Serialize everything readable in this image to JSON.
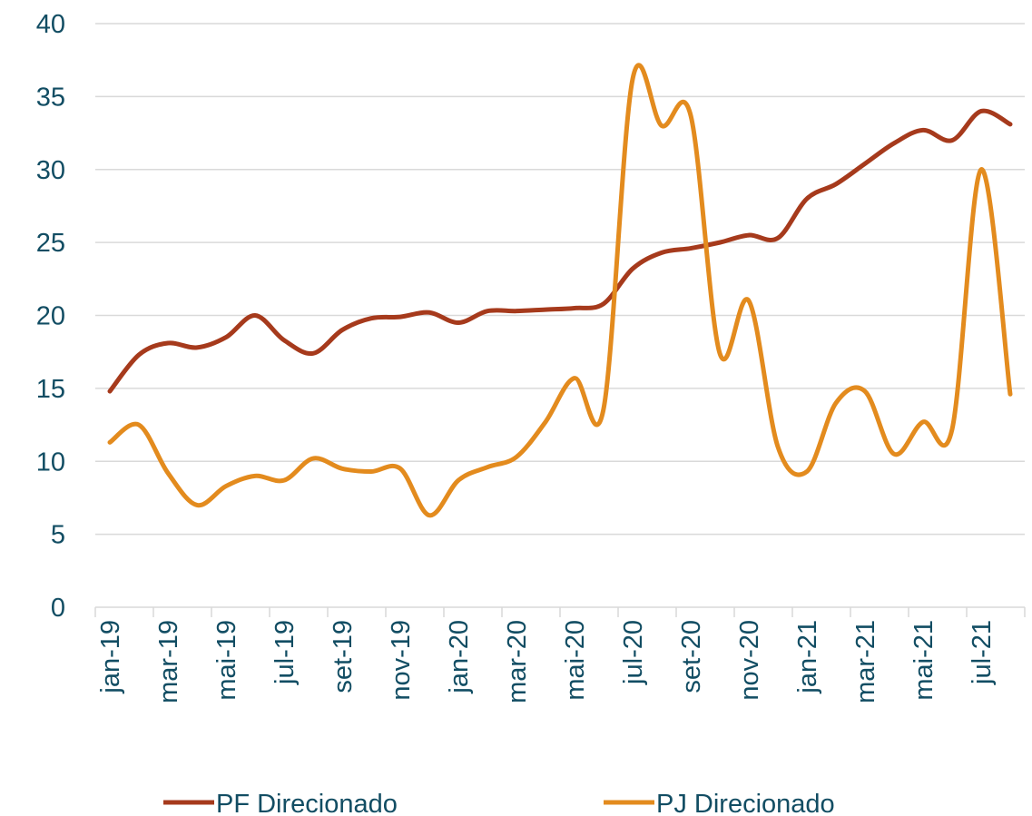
{
  "chart_data": {
    "type": "line",
    "categories": [
      "jan-19",
      null,
      "mar-19",
      null,
      "mai-19",
      null,
      "jul-19",
      null,
      "set-19",
      null,
      "nov-19",
      null,
      "jan-20",
      null,
      "mar-20",
      null,
      "mai-20",
      null,
      "jul-20",
      null,
      "set-20",
      null,
      "nov-20",
      null,
      "jan-21",
      null,
      "mar-21",
      null,
      "mai-21",
      null,
      "jul-21",
      null
    ],
    "series": [
      {
        "name": "PF Direcionado",
        "color": "#a63a1c",
        "values": [
          14.8,
          17.3,
          18.1,
          17.8,
          18.5,
          20.0,
          18.3,
          17.4,
          19.0,
          19.8,
          19.9,
          20.2,
          19.5,
          20.3,
          20.3,
          20.4,
          20.5,
          20.8,
          23.2,
          24.3,
          24.6,
          25.0,
          25.5,
          25.3,
          28.0,
          29.0,
          30.4,
          31.8,
          32.7,
          32.0,
          34.0,
          33.1
        ]
      },
      {
        "name": "PJ Direcionado",
        "color": "#e38b1e",
        "values": [
          11.3,
          12.5,
          9.2,
          7.0,
          8.3,
          9.0,
          8.7,
          10.2,
          9.5,
          9.3,
          9.5,
          6.3,
          8.7,
          9.6,
          10.3,
          12.7,
          15.7,
          13.6,
          36.2,
          33.0,
          33.7,
          17.4,
          21.0,
          11.0,
          9.3,
          14.0,
          14.8,
          10.5,
          12.7,
          12.2,
          30.0,
          14.6
        ]
      }
    ],
    "ylim": [
      0,
      40
    ],
    "yticks": [
      0,
      5,
      10,
      15,
      20,
      25,
      30,
      35,
      40
    ],
    "grid": true,
    "legend": "bottom"
  }
}
